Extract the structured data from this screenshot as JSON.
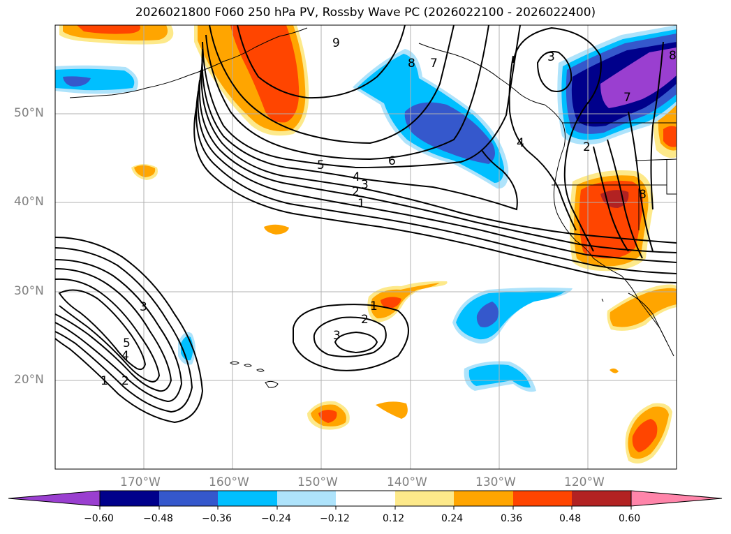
{
  "title": "2026021800 F060 250 hPa PV, Rossby Wave PC (2026022100 - 2026022400)",
  "map": {
    "lon_range": [
      -180,
      -110
    ],
    "lat_range": [
      10,
      60
    ],
    "lat_labels": [
      "50°N",
      "40°N",
      "30°N",
      "20°N"
    ],
    "lon_labels": [
      "170°W",
      "160°W",
      "150°W",
      "140°W",
      "130°W",
      "120°W"
    ]
  },
  "contour_labels": [
    {
      "text": "9"
    },
    {
      "text": "8"
    },
    {
      "text": "7"
    },
    {
      "text": "6"
    },
    {
      "text": "5"
    },
    {
      "text": "4"
    },
    {
      "text": "3"
    },
    {
      "text": "2"
    },
    {
      "text": "1"
    },
    {
      "text": "3"
    },
    {
      "text": "4"
    },
    {
      "text": "2"
    },
    {
      "text": "5"
    },
    {
      "text": "4"
    },
    {
      "text": "3"
    },
    {
      "text": "2"
    },
    {
      "text": "1"
    },
    {
      "text": "1"
    },
    {
      "text": "2"
    },
    {
      "text": "3"
    },
    {
      "text": "8"
    },
    {
      "text": "7"
    },
    {
      "text": "8"
    }
  ],
  "colorbar": {
    "colors": [
      "#9a3fd0",
      "#00008b",
      "#3558cc",
      "#00bfff",
      "#aee3fb",
      "#ffffff",
      "#fde98a",
      "#ffa500",
      "#ff4500",
      "#b22222",
      "#ff85aa"
    ],
    "ticks": [
      "−0.60",
      "−0.48",
      "−0.36",
      "−0.24",
      "−0.12",
      "0.12",
      "0.24",
      "0.36",
      "0.48",
      "0.60"
    ],
    "values": [
      -0.6,
      -0.48,
      -0.36,
      -0.24,
      -0.12,
      0.12,
      0.24,
      0.36,
      0.48,
      0.6
    ]
  }
}
